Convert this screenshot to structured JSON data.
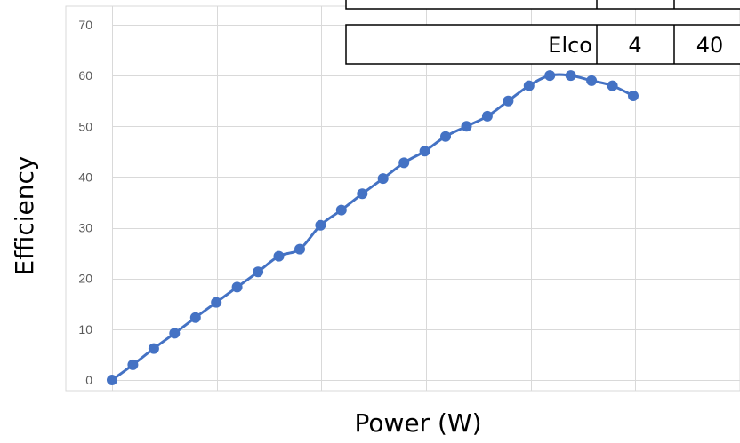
{
  "chart_data": {
    "type": "line",
    "xlabel": "Power (W)",
    "ylabel": "Efficiency",
    "ylim": [
      0,
      70
    ],
    "yticks": [
      0,
      10,
      20,
      30,
      40,
      50,
      60,
      70
    ],
    "x_gridlines": 6,
    "grid": true,
    "show_x_tick_labels": false,
    "series": [
      {
        "color": "#4472c4",
        "marker": "circle",
        "smooth": true,
        "values": [
          0,
          3,
          6.2,
          9.2,
          12.3,
          15.3,
          18.3,
          21.3,
          24.4,
          25.8,
          30.5,
          33.5,
          36.7,
          39.7,
          42.8,
          45.1,
          48,
          50,
          52,
          55,
          58,
          60,
          60,
          59,
          58,
          56
        ]
      }
    ]
  },
  "table": {
    "rows": [
      [
        "",
        "",
        ""
      ],
      [
        "Elco",
        "4",
        "40"
      ]
    ]
  }
}
